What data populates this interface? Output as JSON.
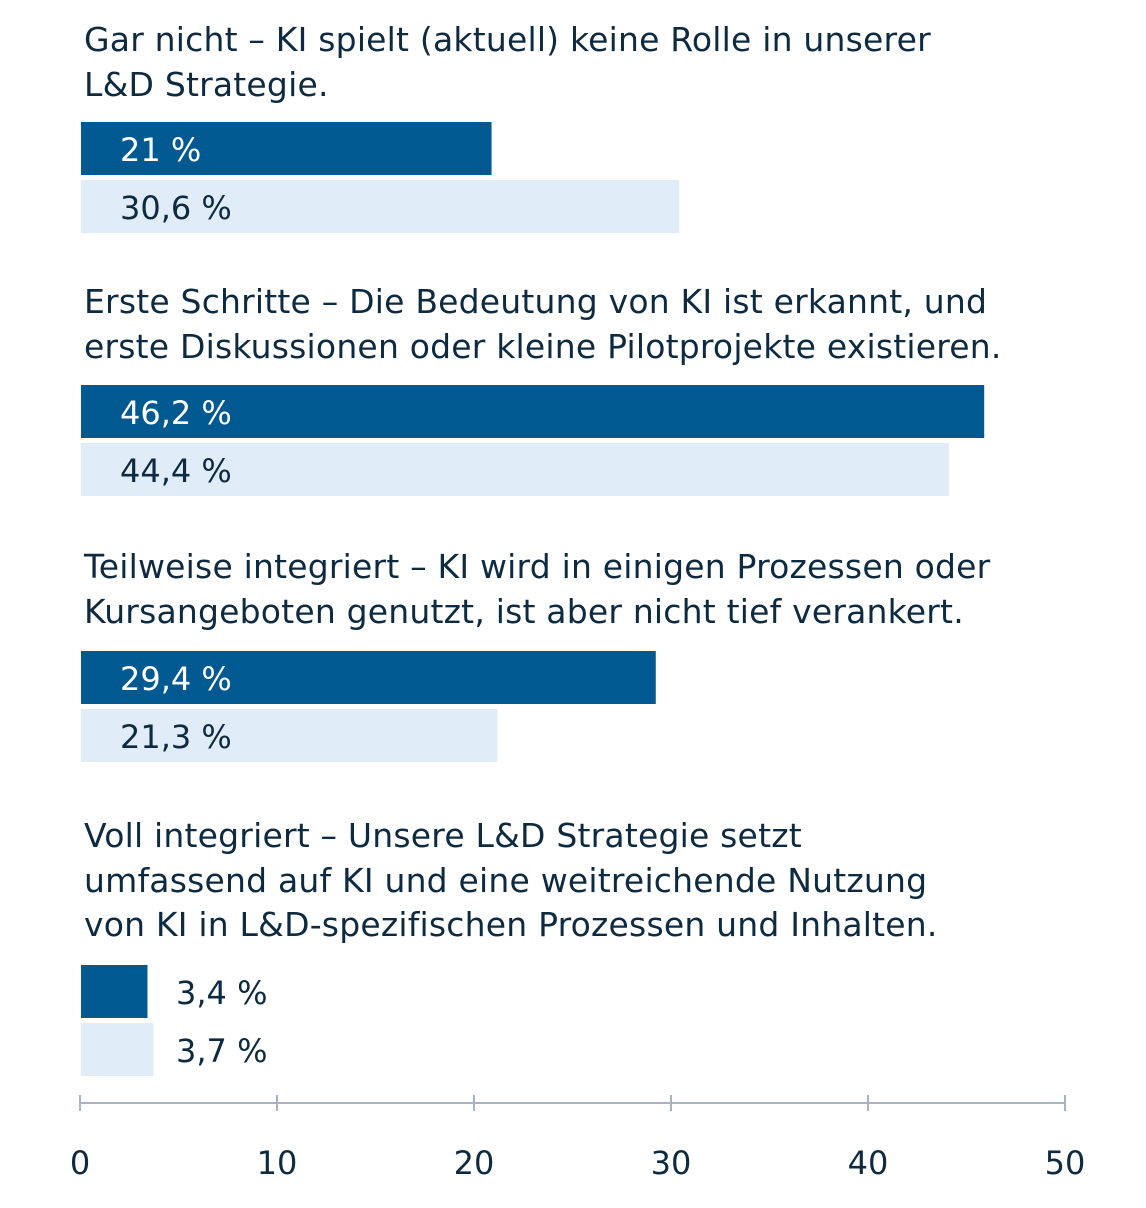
{
  "chart_data": {
    "type": "bar",
    "orientation": "horizontal",
    "categories": [
      "Gar nicht – KI spielt (aktuell) keine Rolle in unserer L&D Strategie.",
      "Erste Schritte – Die Bedeutung von KI ist erkannt, und erste Diskussionen oder kleine Pilotprojekte existieren.",
      "Teilweise integriert – KI wird in einigen Prozessen oder Kursangeboten genutzt, ist aber nicht tief verankert.",
      "Voll integriert – Unsere L&D Strategie setzt umfassend auf KI und eine weitreichende Nutzung von KI in L&D-spezifischen Prozessen und Inhalten."
    ],
    "category_lines": [
      [
        "Gar nicht – KI spielt (aktuell) keine Rolle in unserer",
        "L&D Strategie."
      ],
      [
        "Erste Schritte – Die Bedeutung von KI ist erkannt, und",
        "erste Diskussionen oder kleine Pilotprojekte existieren."
      ],
      [
        "Teilweise integriert – KI wird in einigen Prozessen oder",
        "Kursangeboten genutzt, ist aber nicht tief verankert."
      ],
      [
        "Voll integriert – Unsere L&D Strategie setzt",
        "umfassend auf KI und eine weitreichende Nutzung",
        "von KI in L&D-spezifischen Prozessen und Inhalten."
      ]
    ],
    "series": [
      {
        "values": [
          21,
          46.2,
          29.4,
          3.4
        ],
        "labels": [
          "21 %",
          "46,2 %",
          "29,4 %",
          "3,4 %"
        ],
        "color": "#005a91"
      },
      {
        "values": [
          30.6,
          44.4,
          21.3,
          3.7
        ],
        "labels": [
          "30,6 %",
          "44,4 %",
          "21,3 %",
          "3,7 %"
        ],
        "color": "#e0ecf8"
      }
    ],
    "xlim": [
      0,
      50
    ],
    "xticks": [
      "0",
      "10",
      "20",
      "30",
      "40",
      "50"
    ],
    "grid": false,
    "axis_color": "#a8b4c2",
    "text_color": "#0d2a40"
  }
}
